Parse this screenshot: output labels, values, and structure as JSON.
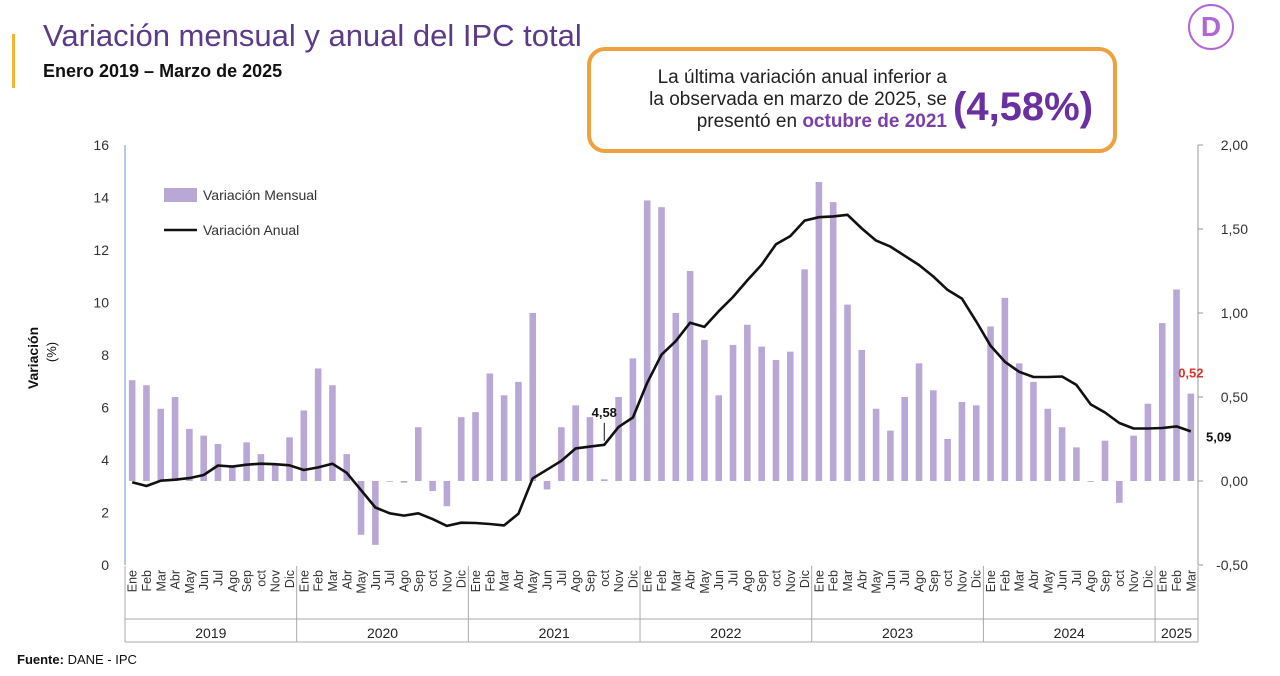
{
  "header": {
    "title": "Variación mensual y anual del IPC total",
    "subtitle": "Enero 2019 – Marzo de 2025"
  },
  "callout": {
    "line1": "La última variación anual inferior a",
    "line2": "la observada en marzo de 2025, se",
    "line3_prefix": "presentó en ",
    "line3_highlight": "octubre de 2021",
    "value": "(4,58%)"
  },
  "logo": {
    "letter": "D",
    "icon": "dane-logo-icon"
  },
  "footer": {
    "source_label": "Fuente:",
    "source_value": "DANE - IPC"
  },
  "colors": {
    "bars": "#B9A7D6",
    "line": "#111111",
    "title": "#5B3A87",
    "callout_border": "#EFA13E",
    "highlight": "#7B3FA8",
    "last_label": "#E0302A"
  },
  "chart_data": {
    "type": "bar+line",
    "ylabel": "Variación\n(%)",
    "left_axis": {
      "min": 0,
      "max": 16,
      "ticks": [
        "0",
        "2",
        "4",
        "6",
        "8",
        "10",
        "12",
        "14",
        "16"
      ]
    },
    "right_axis": {
      "min": -0.5,
      "max": 2.0,
      "ticks": [
        "-0,50",
        "0,00",
        "0,50",
        "1,00",
        "1,50",
        "2,00"
      ]
    },
    "legend": {
      "position": "top-left",
      "monthly": "Variación Mensual",
      "annual": "Variación Anual"
    },
    "month_labels": [
      "Ene",
      "Feb",
      "Mar",
      "Abr",
      "May",
      "Jun",
      "Jul",
      "Ago",
      "Sep",
      "oct",
      "Nov",
      "Dic"
    ],
    "years": [
      {
        "label": "2019",
        "months": 12
      },
      {
        "label": "2020",
        "months": 12
      },
      {
        "label": "2021",
        "months": 12
      },
      {
        "label": "2022",
        "months": 12
      },
      {
        "label": "2023",
        "months": 12
      },
      {
        "label": "2024",
        "months": 12
      },
      {
        "label": "2025",
        "months": 3
      }
    ],
    "series": [
      {
        "name": "Variación Mensual",
        "axis": "right",
        "values": [
          0.6,
          0.57,
          0.43,
          0.5,
          0.31,
          0.27,
          0.22,
          0.09,
          0.23,
          0.16,
          0.1,
          0.26,
          0.42,
          0.67,
          0.57,
          0.16,
          -0.32,
          -0.38,
          0.0,
          -0.01,
          0.32,
          -0.06,
          -0.15,
          0.38,
          0.41,
          0.64,
          0.51,
          0.59,
          1.0,
          -0.05,
          0.32,
          0.45,
          0.38,
          0.01,
          0.5,
          0.73,
          1.67,
          1.63,
          1.0,
          1.25,
          0.84,
          0.51,
          0.81,
          0.93,
          0.8,
          0.72,
          0.77,
          1.26,
          1.78,
          1.66,
          1.05,
          0.78,
          0.43,
          0.3,
          0.5,
          0.7,
          0.54,
          0.25,
          0.47,
          0.45,
          0.92,
          1.09,
          0.7,
          0.59,
          0.43,
          0.32,
          0.2,
          0.0,
          0.24,
          -0.13,
          0.27,
          0.46,
          0.94,
          1.14,
          0.52
        ]
      },
      {
        "name": "Variación Anual",
        "axis": "left",
        "values": [
          3.15,
          3.01,
          3.21,
          3.25,
          3.31,
          3.43,
          3.79,
          3.75,
          3.82,
          3.86,
          3.84,
          3.8,
          3.62,
          3.72,
          3.86,
          3.51,
          2.85,
          2.19,
          1.97,
          1.88,
          1.97,
          1.75,
          1.49,
          1.61,
          1.6,
          1.56,
          1.51,
          1.95,
          3.3,
          3.63,
          3.97,
          4.44,
          4.51,
          4.58,
          5.26,
          5.62,
          6.94,
          8.01,
          8.53,
          9.23,
          9.07,
          9.67,
          10.21,
          10.84,
          11.44,
          12.22,
          12.53,
          13.12,
          13.25,
          13.28,
          13.34,
          12.82,
          12.36,
          12.13,
          11.78,
          11.43,
          10.99,
          10.48,
          10.15,
          9.28,
          8.35,
          7.74,
          7.36,
          7.16,
          7.16,
          7.18,
          6.86,
          6.12,
          5.81,
          5.41,
          5.2,
          5.2,
          5.22,
          5.28,
          5.09
        ]
      }
    ],
    "annotations": [
      {
        "text": "4,58",
        "series": "Variación Anual",
        "index": 33
      },
      {
        "text": "0,52",
        "series": "Variación Mensual",
        "index": 74
      },
      {
        "text": "5,09",
        "series": "Variación Anual",
        "index": 74
      }
    ]
  }
}
